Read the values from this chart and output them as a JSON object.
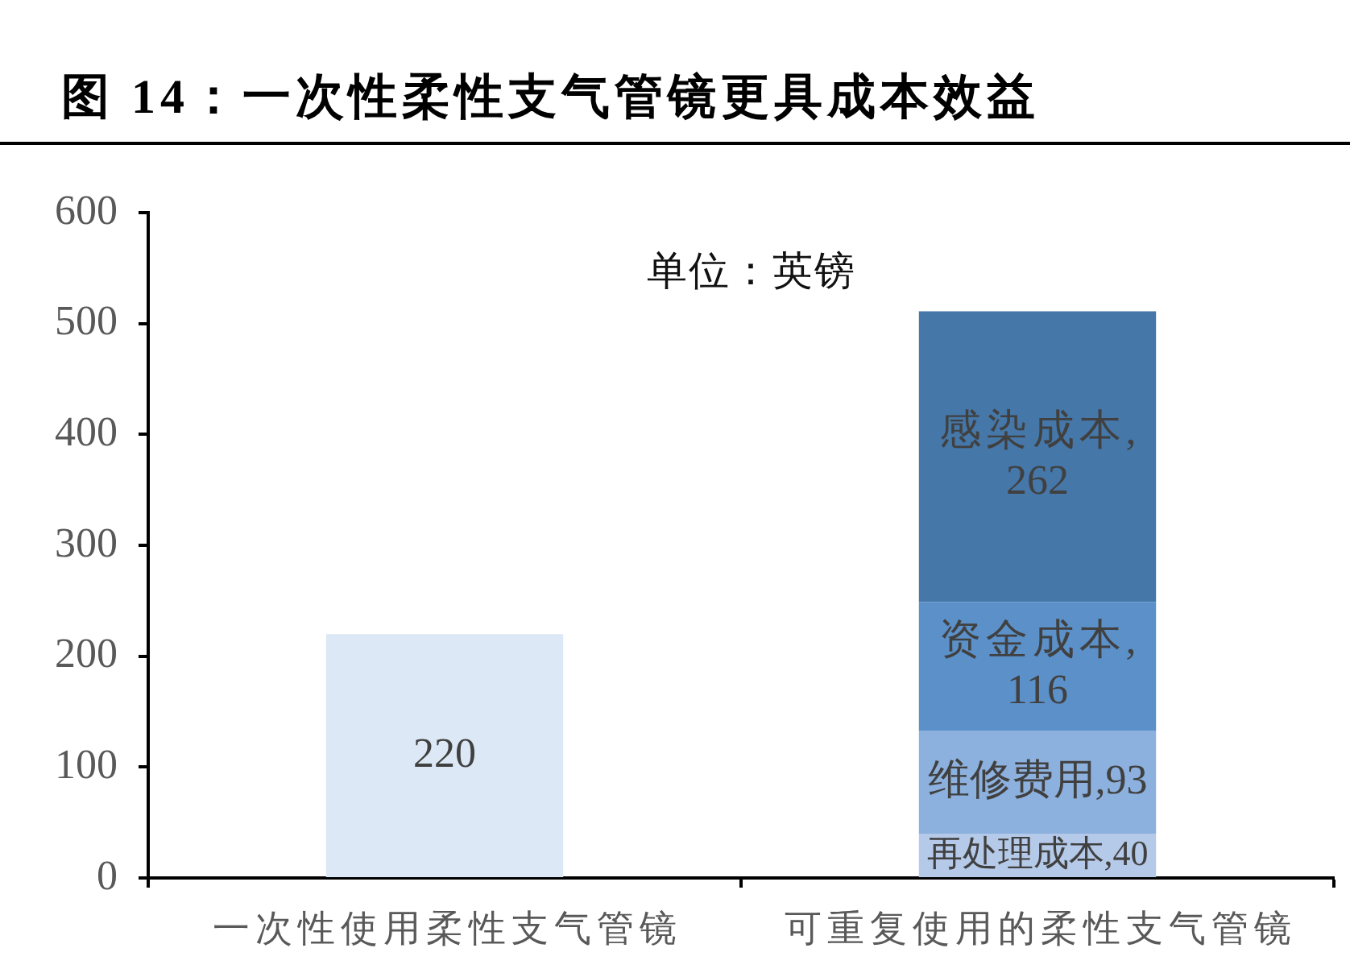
{
  "chart_data": {
    "type": "bar",
    "title": "图 14：一次性柔性支气管镜更具成本效益",
    "categories": [
      "一次性使用柔性支气管镜",
      "可重复使用的柔性支气管镜"
    ],
    "series": [
      {
        "color": "#dce8f5",
        "values": [
          220,
          null
        ]
      },
      {
        "name": "再处理成本,",
        "color": "#b5c9e8",
        "values": [
          null,
          40
        ]
      },
      {
        "name": "维修费用,",
        "color": "#8db1de",
        "values": [
          null,
          93
        ]
      },
      {
        "name": "资金成本,",
        "color": "#5b90c9",
        "values": [
          null,
          116
        ]
      },
      {
        "name": "感染成本,",
        "color": "#4577a9",
        "values": [
          null,
          262
        ]
      }
    ],
    "stacked": true,
    "ylim": [
      0,
      600
    ],
    "yticks": [
      0,
      100,
      200,
      300,
      400,
      500,
      600
    ],
    "grid": false,
    "legend": false,
    "data_labels": true,
    "annotations": [
      "单位：英镑"
    ]
  }
}
